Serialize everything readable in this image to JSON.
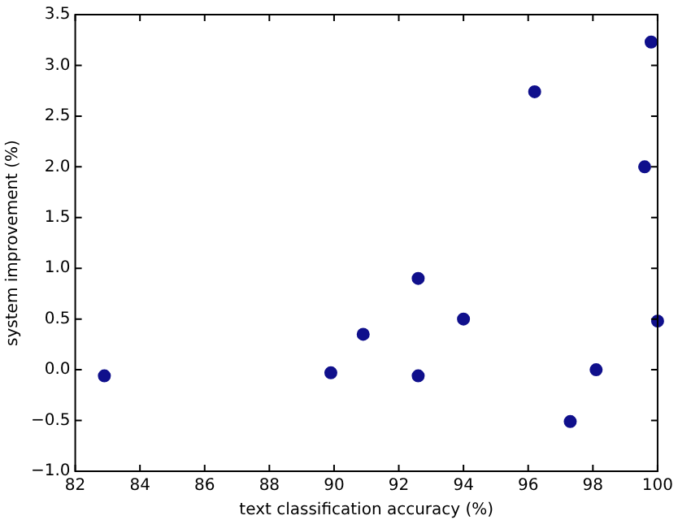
{
  "chart_data": {
    "type": "scatter",
    "xlabel": "text classification accuracy (%)",
    "ylabel": "system improvement (%)",
    "series": [
      {
        "color": "#10108c",
        "x": [
          82.9,
          89.9,
          90.9,
          92.6,
          92.6,
          94.0,
          96.2,
          97.3,
          98.1,
          99.6,
          99.8,
          100.0
        ],
        "values": [
          -0.06,
          -0.03,
          0.35,
          0.9,
          -0.06,
          0.5,
          2.74,
          -0.51,
          0.0,
          2.0,
          3.23,
          0.48
        ]
      }
    ],
    "xlim": [
      82,
      100
    ],
    "xticks": [
      82,
      84,
      86,
      88,
      90,
      92,
      94,
      96,
      98,
      100
    ],
    "ylim": [
      -1,
      3.5
    ],
    "yticks": [
      {
        "value": -1,
        "label": "−1.0"
      },
      -0.5,
      {
        "value": 0,
        "label": "0.0"
      },
      0.5,
      {
        "value": 1,
        "label": "1.0"
      },
      1.5,
      {
        "value": 2,
        "label": "2.0"
      },
      2.5,
      {
        "value": 3,
        "label": "3.0"
      },
      3.5
    ],
    "marker": "circle",
    "grid": false,
    "legend": false
  }
}
